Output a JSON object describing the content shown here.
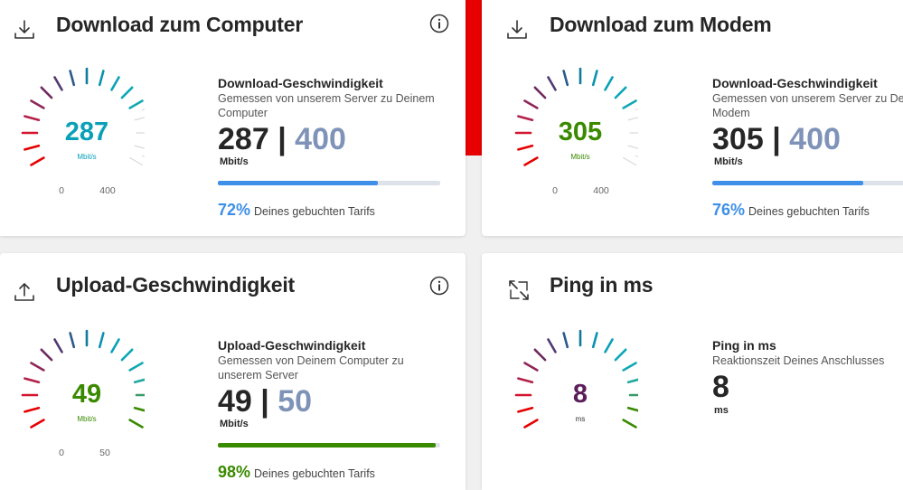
{
  "colors": {
    "accent_red": "#e60000",
    "blue_value": "#0aa0b8",
    "green_value": "#3a8a00",
    "purple_value": "#5b1e5b",
    "bar_blue": "#3d8fe8",
    "bar_green": "#3a8a00",
    "max_grey_blue": "#7f93b8"
  },
  "cards": {
    "download_computer": {
      "title": "Download zum Computer",
      "gauge_value": "287",
      "gauge_unit": "Mbit/s",
      "gauge_min": "0",
      "gauge_max": "400",
      "fraction": 0.72,
      "label": "Download-Geschwindigkeit",
      "sub": "Gemessen von unserem Server zu Deinem Computer",
      "value": "287",
      "separator": "|",
      "max": "400",
      "unit": "Mbit/s",
      "percent": "72%",
      "percent_text": "Deines gebuchten Tarifs"
    },
    "download_modem": {
      "title": "Download zum Modem",
      "gauge_value": "305",
      "gauge_unit": "Mbit/s",
      "gauge_min": "0",
      "gauge_max": "400",
      "fraction": 0.76,
      "label": "Download-Geschwindigkeit",
      "sub": "Gemessen von unserem Server zu Deinem Modem",
      "value": "305",
      "separator": "|",
      "max": "400",
      "unit": "Mbit/s",
      "percent": "76%",
      "percent_text": "Deines gebuchten Tarifs"
    },
    "upload": {
      "title": "Upload-Geschwindigkeit",
      "gauge_value": "49",
      "gauge_unit": "Mbit/s",
      "gauge_min": "0",
      "gauge_max": "50",
      "fraction": 0.98,
      "label": "Upload-Geschwindigkeit",
      "sub": "Gemessen von Deinem Computer zu unserem Server",
      "value": "49",
      "separator": "|",
      "max": "50",
      "unit": "Mbit/s",
      "percent": "98%",
      "percent_text": "Deines gebuchten Tarifs"
    },
    "ping": {
      "title": "Ping in ms",
      "gauge_value": "8",
      "gauge_unit": "ms",
      "fraction": 1.0,
      "label": "Ping in ms",
      "sub": "Reaktionszeit Deines Anschlusses",
      "value": "8",
      "unit": "ms"
    }
  },
  "icons": {
    "download": "download-icon",
    "upload": "upload-icon",
    "info": "info-icon",
    "ping": "expand-arrows-icon"
  }
}
